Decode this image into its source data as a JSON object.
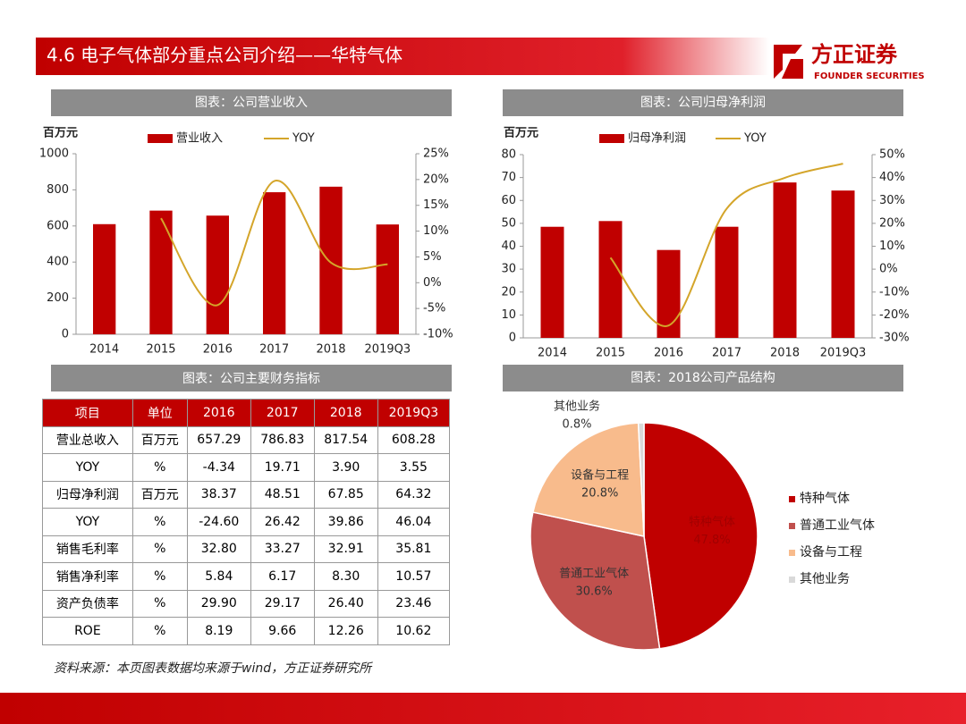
{
  "header": {
    "title": "4.6 电子气体部分重点公司介绍——华特气体",
    "logo": "方正证券",
    "logo_sub": "FOUNDER SECURITIES"
  },
  "chart_data": [
    {
      "type": "bar",
      "title": "图表：公司营业收入",
      "y_label": "百万元",
      "legend": "top",
      "categories": [
        "2014",
        "2015",
        "2016",
        "2017",
        "2018",
        "2019Q3"
      ],
      "series": [
        {
          "name": "营业收入",
          "type": "bar",
          "color": "#c00000",
          "values": [
            610,
            685,
            657.29,
            786.83,
            817.54,
            608.28
          ]
        },
        {
          "name": "YOY",
          "type": "line",
          "axis": "y2",
          "color": "#d4a52a",
          "values": [
            null,
            12.5,
            -4.34,
            19.71,
            3.9,
            3.55
          ]
        }
      ],
      "ylim": [
        0,
        1000
      ],
      "yticks": [
        0,
        200,
        400,
        600,
        800,
        1000
      ],
      "y2lim": [
        -10,
        25
      ],
      "y2ticks": [
        {
          "value": -10,
          "label": "-10%"
        },
        {
          "value": -5,
          "label": "-5%"
        },
        {
          "value": 0,
          "label": "0%"
        },
        {
          "value": 5,
          "label": "5%"
        },
        {
          "value": 10,
          "label": "10%"
        },
        {
          "value": 15,
          "label": "15%"
        },
        {
          "value": 20,
          "label": "20%"
        },
        {
          "value": 25,
          "label": "25%"
        }
      ]
    },
    {
      "type": "bar",
      "title": "图表：公司归母净利润",
      "y_label": "百万元",
      "legend": "top",
      "categories": [
        "2014",
        "2015",
        "2016",
        "2017",
        "2018",
        "2019Q3"
      ],
      "series": [
        {
          "name": "归母净利润",
          "type": "bar",
          "color": "#c00000",
          "values": [
            48.5,
            51,
            38.37,
            48.51,
            67.85,
            64.32
          ]
        },
        {
          "name": "YOY",
          "type": "line",
          "axis": "y2",
          "color": "#d4a52a",
          "values": [
            null,
            5,
            -24.6,
            26.42,
            39.86,
            46.04
          ]
        }
      ],
      "ylim": [
        0,
        80
      ],
      "yticks": [
        0,
        10,
        20,
        30,
        40,
        50,
        60,
        70,
        80
      ],
      "y2lim": [
        -30,
        50
      ],
      "y2ticks": [
        {
          "value": -30,
          "label": "-30%"
        },
        {
          "value": -20,
          "label": "-20%"
        },
        {
          "value": -10,
          "label": "-10%"
        },
        {
          "value": 0,
          "label": "0%"
        },
        {
          "value": 10,
          "label": "10%"
        },
        {
          "value": 20,
          "label": "20%"
        },
        {
          "value": 30,
          "label": "30%"
        },
        {
          "value": 40,
          "label": "40%"
        },
        {
          "value": 50,
          "label": "50%"
        }
      ]
    },
    {
      "type": "pie",
      "title": "图表：2018公司产品结构",
      "legend": "right",
      "categories": [
        "特种气体",
        "普通工业气体",
        "设备与工程",
        "其他业务"
      ],
      "values": [
        47.8,
        30.6,
        20.8,
        0.8
      ],
      "value_labels": [
        "47.8%",
        "30.6%",
        "20.8%",
        "0.8%"
      ],
      "colors": [
        "#c00000",
        "#c0504d",
        "#f8bb8c",
        "#d9d9d9"
      ]
    }
  ],
  "table": {
    "title": "图表：公司主要财务指标",
    "header": [
      "项目",
      "单位",
      "2016",
      "2017",
      "2018",
      "2019Q3"
    ],
    "rows": [
      [
        "营业总收入",
        "百万元",
        "657.29",
        "786.83",
        "817.54",
        "608.28"
      ],
      [
        "YOY",
        "%",
        "-4.34",
        "19.71",
        "3.90",
        "3.55"
      ],
      [
        "归母净利润",
        "百万元",
        "38.37",
        "48.51",
        "67.85",
        "64.32"
      ],
      [
        "YOY",
        "%",
        "-24.60",
        "26.42",
        "39.86",
        "46.04"
      ],
      [
        "销售毛利率",
        "%",
        "32.80",
        "33.27",
        "32.91",
        "35.81"
      ],
      [
        "销售净利率",
        "%",
        "5.84",
        "6.17",
        "8.30",
        "10.57"
      ],
      [
        "资产负债率",
        "%",
        "29.90",
        "29.17",
        "26.40",
        "23.46"
      ],
      [
        "ROE",
        "%",
        "8.19",
        "9.66",
        "12.26",
        "10.62"
      ]
    ]
  },
  "source": "资料来源：本页图表数据均来源于wind，方正证券研究所"
}
